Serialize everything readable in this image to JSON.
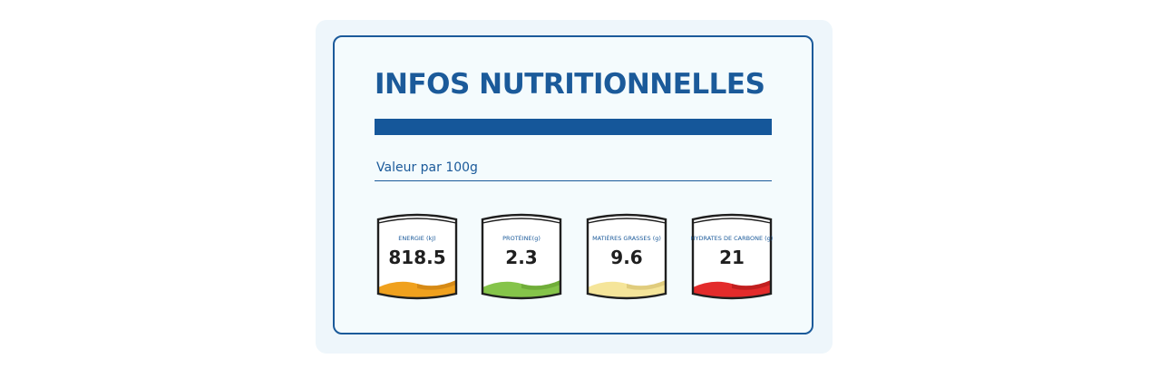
{
  "title": "INFOS NUTRITIONNELLES",
  "subtitle": "Valeur par 100g",
  "nutrients": [
    {
      "label": "ENERGIE (kJ)",
      "value": "818.5",
      "color": "#f0a11e",
      "shade": "#c17810"
    },
    {
      "label": "PROTÉINE(g)",
      "value": "2.3",
      "color": "#85c44a",
      "shade": "#5f9a2c"
    },
    {
      "label": "MATIÈRES GRASSES (g)",
      "value": "9.6",
      "color": "#f5e59a",
      "shade": "#cdb866"
    },
    {
      "label": "HYDRATES DE CARBONE (g)",
      "value": "21",
      "color": "#e32b2b",
      "shade": "#a51616"
    }
  ]
}
